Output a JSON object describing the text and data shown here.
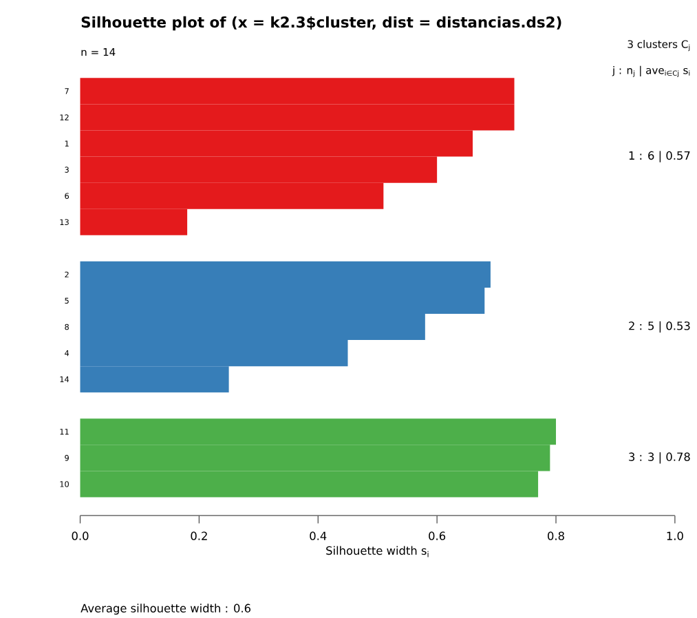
{
  "chart_data": {
    "type": "bar",
    "orientation": "horizontal",
    "title": "Silhouette plot of (x = k2.3$cluster, dist = distancias.ds2)",
    "subtitle": "n = 14",
    "xlabel": "Silhouette width s$_{i}$",
    "categories": [
      "7",
      "12",
      "1",
      "3",
      "6",
      "13",
      null,
      "2",
      "5",
      "8",
      "4",
      "14",
      null,
      "11",
      "9",
      "10"
    ],
    "values": [
      0.73,
      0.73,
      0.66,
      0.6,
      0.51,
      0.18,
      null,
      0.69,
      0.68,
      0.58,
      0.45,
      0.25,
      null,
      0.8,
      0.79,
      0.77
    ],
    "colors": [
      "#e41a1c",
      "#e41a1c",
      "#e41a1c",
      "#e41a1c",
      "#e41a1c",
      "#e41a1c",
      null,
      "#377eb8",
      "#377eb8",
      "#377eb8",
      "#377eb8",
      "#377eb8",
      null,
      "#4daf4a",
      "#4daf4a",
      "#4daf4a"
    ],
    "xlim": [
      0,
      1
    ],
    "xticks": [
      {
        "value": 0,
        "label": "0.0"
      },
      {
        "value": 0.2,
        "label": "0.2"
      },
      {
        "value": 0.4,
        "label": "0.4"
      },
      {
        "value": 0.6,
        "label": "0.6"
      },
      {
        "value": 0.8,
        "label": "0.8"
      },
      {
        "value": 1,
        "label": "1.0"
      }
    ],
    "annotations": [
      "3  clusters  C$_{j}$",
      "j :  n$_{j}$ | ave$_{i∈Cj}$  s$_{i}$",
      "1 :  6  |  0.57",
      "2 :  5  |  0.53",
      "3 :  3  |  0.78",
      "Average silhouette width :  0.6"
    ],
    "grid": false
  }
}
